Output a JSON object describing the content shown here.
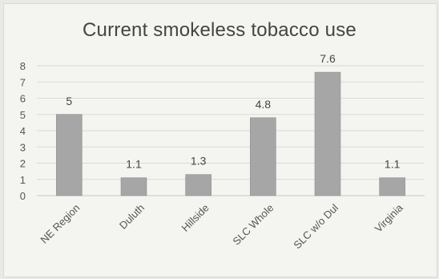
{
  "chart_data": {
    "type": "bar",
    "title": "Current smokeless tobacco use",
    "categories": [
      "NE Region",
      "Duluth",
      "Hillside",
      "SLC Whole",
      "SLC w/o Dul",
      "Virginia"
    ],
    "values": [
      5,
      1.1,
      1.3,
      4.8,
      7.6,
      1.1
    ],
    "data_labels": [
      "5",
      "1.1",
      "1.3",
      "4.8",
      "7.6",
      "1.1"
    ],
    "xlabel": "",
    "ylabel": "",
    "ylim": [
      0,
      8
    ],
    "yticks": [
      "0",
      "1",
      "2",
      "3",
      "4",
      "5",
      "6",
      "7",
      "8"
    ],
    "grid": true,
    "legend": "none",
    "colors": {
      "bar": "#a6a6a6",
      "grid": "#d9d9d6"
    }
  }
}
